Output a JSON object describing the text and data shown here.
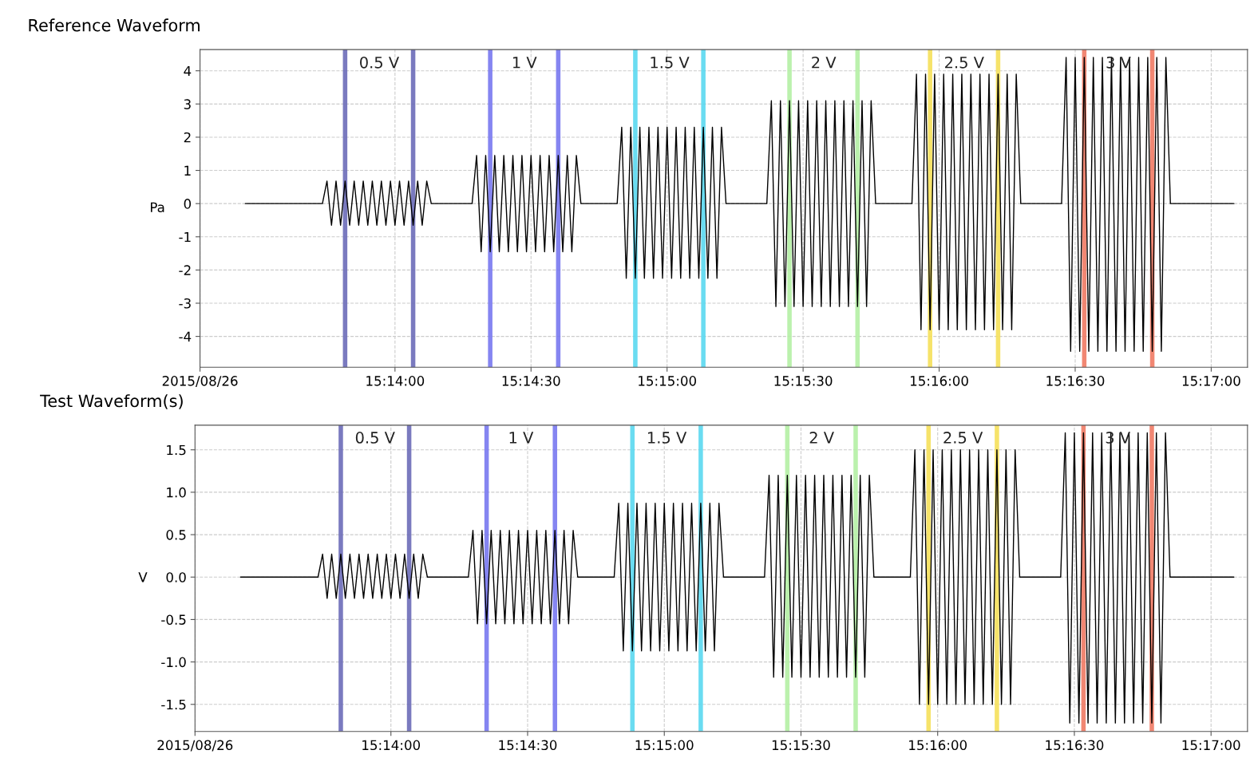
{
  "chart_data": [
    {
      "type": "line",
      "title": "Reference Waveform",
      "ylabel": "Pa",
      "grid": true,
      "xlim": [
        "2015-08-26T15:13:17",
        "2015-08-26T15:17:08"
      ],
      "xticks": [
        {
          "value": "2015-08-26T15:13:17",
          "label": "2015/08/26"
        },
        {
          "value": "2015-08-26T15:14:00",
          "label": "15:14:00"
        },
        {
          "value": "2015-08-26T15:14:30",
          "label": "15:14:30"
        },
        {
          "value": "2015-08-26T15:15:00",
          "label": "15:15:00"
        },
        {
          "value": "2015-08-26T15:15:30",
          "label": "15:15:30"
        },
        {
          "value": "2015-08-26T15:16:00",
          "label": "15:16:00"
        },
        {
          "value": "2015-08-26T15:16:30",
          "label": "15:16:30"
        },
        {
          "value": "2015-08-26T15:17:00",
          "label": "15:17:00"
        }
      ],
      "ylim": [
        -4.93,
        4.64
      ],
      "yticks": [
        -4,
        -3,
        -2,
        -1,
        0,
        1,
        2,
        3,
        4
      ],
      "ref_lines": [
        {
          "axis": "x",
          "value": "2015-08-26T15:13:49",
          "color": "#6b6bb8"
        },
        {
          "axis": "x",
          "value": "2015-08-26T15:14:04",
          "color": "#6b6bb8"
        },
        {
          "axis": "x",
          "value": "2015-08-26T15:14:21",
          "color": "#7878f0"
        },
        {
          "axis": "x",
          "value": "2015-08-26T15:14:36",
          "color": "#7878f0"
        },
        {
          "axis": "x",
          "value": "2015-08-26T15:14:53",
          "color": "#5ad8f0"
        },
        {
          "axis": "x",
          "value": "2015-08-26T15:15:08",
          "color": "#5ad8f0"
        },
        {
          "axis": "x",
          "value": "2015-08-26T15:15:27",
          "color": "#b4f0a4"
        },
        {
          "axis": "x",
          "value": "2015-08-26T15:15:42",
          "color": "#b4f0a4"
        },
        {
          "axis": "x",
          "value": "2015-08-26T15:15:58",
          "color": "#f5e05a"
        },
        {
          "axis": "x",
          "value": "2015-08-26T15:16:13",
          "color": "#f5e05a"
        },
        {
          "axis": "x",
          "value": "2015-08-26T15:16:32",
          "color": "#f07a64"
        },
        {
          "axis": "x",
          "value": "2015-08-26T15:16:47",
          "color": "#f07a64"
        }
      ],
      "annotations": [
        "0.5 V",
        "1 V",
        "1.5 V",
        "2 V",
        "2.5 V",
        "3 V"
      ],
      "series": [
        {
          "color": "#000000",
          "line_style": "solid",
          "x": [
            "2015-08-26T15:13:27",
            "2015-08-26T15:13:44",
            "2015-08-26T15:13:45",
            "2015-08-26T15:13:46",
            "2015-08-26T15:13:47",
            "2015-08-26T15:13:48",
            "2015-08-26T15:13:49",
            "2015-08-26T15:13:50",
            "2015-08-26T15:13:51",
            "2015-08-26T15:13:52",
            "2015-08-26T15:13:53",
            "2015-08-26T15:13:54",
            "2015-08-26T15:13:55",
            "2015-08-26T15:13:56",
            "2015-08-26T15:13:57",
            "2015-08-26T15:13:58",
            "2015-08-26T15:13:59",
            "2015-08-26T15:14:00",
            "2015-08-26T15:14:01",
            "2015-08-26T15:14:02",
            "2015-08-26T15:14:03",
            "2015-08-26T15:14:04",
            "2015-08-26T15:14:05",
            "2015-08-26T15:14:06",
            "2015-08-26T15:14:07",
            "2015-08-26T15:14:08",
            "2015-08-26T15:14:17",
            "2015-08-26T15:14:18",
            "2015-08-26T15:14:19",
            "2015-08-26T15:14:20",
            "2015-08-26T15:14:21",
            "2015-08-26T15:14:22",
            "2015-08-26T15:14:23",
            "2015-08-26T15:14:24",
            "2015-08-26T15:14:25",
            "2015-08-26T15:14:26",
            "2015-08-26T15:14:27",
            "2015-08-26T15:14:28",
            "2015-08-26T15:14:29",
            "2015-08-26T15:14:30",
            "2015-08-26T15:14:31",
            "2015-08-26T15:14:32",
            "2015-08-26T15:14:33",
            "2015-08-26T15:14:34",
            "2015-08-26T15:14:35",
            "2015-08-26T15:14:36",
            "2015-08-26T15:14:37",
            "2015-08-26T15:14:38",
            "2015-08-26T15:14:39",
            "2015-08-26T15:14:40",
            "2015-08-26T15:14:41",
            "2015-08-26T15:14:49",
            "2015-08-26T15:14:50",
            "2015-08-26T15:14:51",
            "2015-08-26T15:14:52",
            "2015-08-26T15:14:53",
            "2015-08-26T15:14:54",
            "2015-08-26T15:14:55",
            "2015-08-26T15:14:56",
            "2015-08-26T15:14:57",
            "2015-08-26T15:14:58",
            "2015-08-26T15:14:59",
            "2015-08-26T15:15:00",
            "2015-08-26T15:15:01",
            "2015-08-26T15:15:02",
            "2015-08-26T15:15:03",
            "2015-08-26T15:15:04",
            "2015-08-26T15:15:05",
            "2015-08-26T15:15:06",
            "2015-08-26T15:15:07",
            "2015-08-26T15:15:08",
            "2015-08-26T15:15:09",
            "2015-08-26T15:15:10",
            "2015-08-26T15:15:11",
            "2015-08-26T15:15:12",
            "2015-08-26T15:15:13",
            "2015-08-26T15:15:22",
            "2015-08-26T15:15:23",
            "2015-08-26T15:15:24",
            "2015-08-26T15:15:25",
            "2015-08-26T15:15:26",
            "2015-08-26T15:15:27",
            "2015-08-26T15:15:28",
            "2015-08-26T15:15:29",
            "2015-08-26T15:15:30",
            "2015-08-26T15:15:31",
            "2015-08-26T15:15:32",
            "2015-08-26T15:15:33",
            "2015-08-26T15:15:34",
            "2015-08-26T15:15:35",
            "2015-08-26T15:15:36",
            "2015-08-26T15:15:37",
            "2015-08-26T15:15:38",
            "2015-08-26T15:15:39",
            "2015-08-26T15:15:40",
            "2015-08-26T15:15:41",
            "2015-08-26T15:15:42",
            "2015-08-26T15:15:43",
            "2015-08-26T15:15:44",
            "2015-08-26T15:15:45",
            "2015-08-26T15:15:46",
            "2015-08-26T15:15:54",
            "2015-08-26T15:15:55",
            "2015-08-26T15:15:56",
            "2015-08-26T15:15:57",
            "2015-08-26T15:15:58",
            "2015-08-26T15:15:59",
            "2015-08-26T15:16:00",
            "2015-08-26T15:16:01",
            "2015-08-26T15:16:02",
            "2015-08-26T15:16:03",
            "2015-08-26T15:16:04",
            "2015-08-26T15:16:05",
            "2015-08-26T15:16:06",
            "2015-08-26T15:16:07",
            "2015-08-26T15:16:08",
            "2015-08-26T15:16:09",
            "2015-08-26T15:16:10",
            "2015-08-26T15:16:11",
            "2015-08-26T15:16:12",
            "2015-08-26T15:16:13",
            "2015-08-26T15:16:14",
            "2015-08-26T15:16:15",
            "2015-08-26T15:16:16",
            "2015-08-26T15:16:17",
            "2015-08-26T15:16:18",
            "2015-08-26T15:16:27",
            "2015-08-26T15:16:28",
            "2015-08-26T15:16:29",
            "2015-08-26T15:16:30",
            "2015-08-26T15:16:31",
            "2015-08-26T15:16:32",
            "2015-08-26T15:16:33",
            "2015-08-26T15:16:34",
            "2015-08-26T15:16:35",
            "2015-08-26T15:16:36",
            "2015-08-26T15:16:37",
            "2015-08-26T15:16:38",
            "2015-08-26T15:16:39",
            "2015-08-26T15:16:40",
            "2015-08-26T15:16:41",
            "2015-08-26T15:16:42",
            "2015-08-26T15:16:43",
            "2015-08-26T15:16:44",
            "2015-08-26T15:16:45",
            "2015-08-26T15:16:46",
            "2015-08-26T15:16:47",
            "2015-08-26T15:16:48",
            "2015-08-26T15:16:49",
            "2015-08-26T15:16:50",
            "2015-08-26T15:16:51",
            "2015-08-26T15:17:05"
          ],
          "values": [
            0,
            0,
            0.68,
            -0.65,
            0.68,
            -0.65,
            0.68,
            -0.65,
            0.68,
            -0.65,
            0.68,
            -0.65,
            0.68,
            -0.65,
            0.68,
            -0.65,
            0.68,
            -0.65,
            0.68,
            -0.65,
            0.68,
            -0.65,
            0.68,
            -0.65,
            0.68,
            0,
            0,
            1.45,
            -1.45,
            1.45,
            -1.45,
            1.45,
            -1.45,
            1.45,
            -1.45,
            1.45,
            -1.45,
            1.45,
            -1.45,
            1.45,
            -1.45,
            1.45,
            -1.45,
            1.45,
            -1.45,
            1.45,
            -1.45,
            1.45,
            -1.45,
            1.45,
            0,
            0,
            2.3,
            -2.25,
            2.3,
            -2.25,
            2.3,
            -2.25,
            2.3,
            -2.25,
            2.3,
            -2.25,
            2.3,
            -2.25,
            2.3,
            -2.25,
            2.3,
            -2.25,
            2.3,
            -2.25,
            2.3,
            -2.25,
            2.3,
            -2.25,
            2.3,
            0,
            0,
            3.1,
            -3.1,
            3.1,
            -3.1,
            3.1,
            -3.1,
            3.1,
            -3.1,
            3.1,
            -3.1,
            3.1,
            -3.1,
            3.1,
            -3.1,
            3.1,
            -3.1,
            3.1,
            -3.1,
            3.1,
            -3.1,
            3.1,
            -3.1,
            3.1,
            0,
            0,
            3.9,
            -3.8,
            3.9,
            -3.8,
            3.9,
            -3.8,
            3.9,
            -3.8,
            3.9,
            -3.8,
            3.9,
            -3.8,
            3.9,
            -3.8,
            3.9,
            -3.8,
            3.9,
            -3.8,
            3.9,
            -3.8,
            3.9,
            -3.8,
            3.9,
            0,
            0,
            4.4,
            -4.45,
            4.4,
            -4.45,
            4.4,
            -4.45,
            4.4,
            -4.45,
            4.4,
            -4.45,
            4.4,
            -4.45,
            4.4,
            -4.45,
            4.4,
            -4.45,
            4.4,
            -4.45,
            4.4,
            -4.45,
            4.4,
            -4.45,
            4.4,
            0,
            0
          ]
        }
      ]
    },
    {
      "type": "line",
      "title": "Test Waveform(s)",
      "ylabel": "V",
      "grid": true,
      "xlim": [
        "2015-08-26T15:13:17",
        "2015-08-26T15:17:08"
      ],
      "xticks": [
        {
          "value": "2015-08-26T15:13:17",
          "label": "2015/08/26"
        },
        {
          "value": "2015-08-26T15:14:00",
          "label": "15:14:00"
        },
        {
          "value": "2015-08-26T15:14:30",
          "label": "15:14:30"
        },
        {
          "value": "2015-08-26T15:15:00",
          "label": "15:15:00"
        },
        {
          "value": "2015-08-26T15:15:30",
          "label": "15:15:30"
        },
        {
          "value": "2015-08-26T15:16:00",
          "label": "15:16:00"
        },
        {
          "value": "2015-08-26T15:16:30",
          "label": "15:16:30"
        },
        {
          "value": "2015-08-26T15:17:00",
          "label": "15:17:00"
        }
      ],
      "ylim": [
        -1.82,
        1.79
      ],
      "yticks": [
        {
          "value": -1.5,
          "label": "-1.5"
        },
        {
          "value": -1,
          "label": "-1.0"
        },
        {
          "value": -0.5,
          "label": "-0.5"
        },
        {
          "value": 0,
          "label": "0.0"
        },
        {
          "value": 0.5,
          "label": "0.5"
        },
        {
          "value": 1,
          "label": "1.0"
        },
        {
          "value": 1.5,
          "label": "1.5"
        }
      ],
      "ref_lines": [
        {
          "axis": "x",
          "value": "2015-08-26T15:13:49",
          "color": "#6b6bb8"
        },
        {
          "axis": "x",
          "value": "2015-08-26T15:14:04",
          "color": "#6b6bb8"
        },
        {
          "axis": "x",
          "value": "2015-08-26T15:14:21",
          "color": "#7878f0"
        },
        {
          "axis": "x",
          "value": "2015-08-26T15:14:36",
          "color": "#7878f0"
        },
        {
          "axis": "x",
          "value": "2015-08-26T15:14:53",
          "color": "#5ad8f0"
        },
        {
          "axis": "x",
          "value": "2015-08-26T15:15:08",
          "color": "#5ad8f0"
        },
        {
          "axis": "x",
          "value": "2015-08-26T15:15:27",
          "color": "#b4f0a4"
        },
        {
          "axis": "x",
          "value": "2015-08-26T15:15:42",
          "color": "#b4f0a4"
        },
        {
          "axis": "x",
          "value": "2015-08-26T15:15:58",
          "color": "#f5e05a"
        },
        {
          "axis": "x",
          "value": "2015-08-26T15:16:13",
          "color": "#f5e05a"
        },
        {
          "axis": "x",
          "value": "2015-08-26T15:16:32",
          "color": "#f07a64"
        },
        {
          "axis": "x",
          "value": "2015-08-26T15:16:47",
          "color": "#f07a64"
        }
      ],
      "annotations": [
        "0.5 V",
        "1 V",
        "1.5 V",
        "2 V",
        "2.5 V",
        "3 V"
      ],
      "series": [
        {
          "color": "#000000",
          "line_style": "solid",
          "x": [
            "2015-08-26T15:13:27",
            "2015-08-26T15:13:44",
            "2015-08-26T15:13:45",
            "2015-08-26T15:13:46",
            "2015-08-26T15:13:47",
            "2015-08-26T15:13:48",
            "2015-08-26T15:13:49",
            "2015-08-26T15:13:50",
            "2015-08-26T15:13:51",
            "2015-08-26T15:13:52",
            "2015-08-26T15:13:53",
            "2015-08-26T15:13:54",
            "2015-08-26T15:13:55",
            "2015-08-26T15:13:56",
            "2015-08-26T15:13:57",
            "2015-08-26T15:13:58",
            "2015-08-26T15:13:59",
            "2015-08-26T15:14:00",
            "2015-08-26T15:14:01",
            "2015-08-26T15:14:02",
            "2015-08-26T15:14:03",
            "2015-08-26T15:14:04",
            "2015-08-26T15:14:05",
            "2015-08-26T15:14:06",
            "2015-08-26T15:14:07",
            "2015-08-26T15:14:08",
            "2015-08-26T15:14:17",
            "2015-08-26T15:14:18",
            "2015-08-26T15:14:19",
            "2015-08-26T15:14:20",
            "2015-08-26T15:14:21",
            "2015-08-26T15:14:22",
            "2015-08-26T15:14:23",
            "2015-08-26T15:14:24",
            "2015-08-26T15:14:25",
            "2015-08-26T15:14:26",
            "2015-08-26T15:14:27",
            "2015-08-26T15:14:28",
            "2015-08-26T15:14:29",
            "2015-08-26T15:14:30",
            "2015-08-26T15:14:31",
            "2015-08-26T15:14:32",
            "2015-08-26T15:14:33",
            "2015-08-26T15:14:34",
            "2015-08-26T15:14:35",
            "2015-08-26T15:14:36",
            "2015-08-26T15:14:37",
            "2015-08-26T15:14:38",
            "2015-08-26T15:14:39",
            "2015-08-26T15:14:40",
            "2015-08-26T15:14:41",
            "2015-08-26T15:14:49",
            "2015-08-26T15:14:50",
            "2015-08-26T15:14:51",
            "2015-08-26T15:14:52",
            "2015-08-26T15:14:53",
            "2015-08-26T15:14:54",
            "2015-08-26T15:14:55",
            "2015-08-26T15:14:56",
            "2015-08-26T15:14:57",
            "2015-08-26T15:14:58",
            "2015-08-26T15:14:59",
            "2015-08-26T15:15:00",
            "2015-08-26T15:15:01",
            "2015-08-26T15:15:02",
            "2015-08-26T15:15:03",
            "2015-08-26T15:15:04",
            "2015-08-26T15:15:05",
            "2015-08-26T15:15:06",
            "2015-08-26T15:15:07",
            "2015-08-26T15:15:08",
            "2015-08-26T15:15:09",
            "2015-08-26T15:15:10",
            "2015-08-26T15:15:11",
            "2015-08-26T15:15:12",
            "2015-08-26T15:15:13",
            "2015-08-26T15:15:22",
            "2015-08-26T15:15:23",
            "2015-08-26T15:15:24",
            "2015-08-26T15:15:25",
            "2015-08-26T15:15:26",
            "2015-08-26T15:15:27",
            "2015-08-26T15:15:28",
            "2015-08-26T15:15:29",
            "2015-08-26T15:15:30",
            "2015-08-26T15:15:31",
            "2015-08-26T15:15:32",
            "2015-08-26T15:15:33",
            "2015-08-26T15:15:34",
            "2015-08-26T15:15:35",
            "2015-08-26T15:15:36",
            "2015-08-26T15:15:37",
            "2015-08-26T15:15:38",
            "2015-08-26T15:15:39",
            "2015-08-26T15:15:40",
            "2015-08-26T15:15:41",
            "2015-08-26T15:15:42",
            "2015-08-26T15:15:43",
            "2015-08-26T15:15:44",
            "2015-08-26T15:15:45",
            "2015-08-26T15:15:46",
            "2015-08-26T15:15:54",
            "2015-08-26T15:15:55",
            "2015-08-26T15:15:56",
            "2015-08-26T15:15:57",
            "2015-08-26T15:15:58",
            "2015-08-26T15:15:59",
            "2015-08-26T15:16:00",
            "2015-08-26T15:16:01",
            "2015-08-26T15:16:02",
            "2015-08-26T15:16:03",
            "2015-08-26T15:16:04",
            "2015-08-26T15:16:05",
            "2015-08-26T15:16:06",
            "2015-08-26T15:16:07",
            "2015-08-26T15:16:08",
            "2015-08-26T15:16:09",
            "2015-08-26T15:16:10",
            "2015-08-26T15:16:11",
            "2015-08-26T15:16:12",
            "2015-08-26T15:16:13",
            "2015-08-26T15:16:14",
            "2015-08-26T15:16:15",
            "2015-08-26T15:16:16",
            "2015-08-26T15:16:17",
            "2015-08-26T15:16:18",
            "2015-08-26T15:16:27",
            "2015-08-26T15:16:28",
            "2015-08-26T15:16:29",
            "2015-08-26T15:16:30",
            "2015-08-26T15:16:31",
            "2015-08-26T15:16:32",
            "2015-08-26T15:16:33",
            "2015-08-26T15:16:34",
            "2015-08-26T15:16:35",
            "2015-08-26T15:16:36",
            "2015-08-26T15:16:37",
            "2015-08-26T15:16:38",
            "2015-08-26T15:16:39",
            "2015-08-26T15:16:40",
            "2015-08-26T15:16:41",
            "2015-08-26T15:16:42",
            "2015-08-26T15:16:43",
            "2015-08-26T15:16:44",
            "2015-08-26T15:16:45",
            "2015-08-26T15:16:46",
            "2015-08-26T15:16:47",
            "2015-08-26T15:16:48",
            "2015-08-26T15:16:49",
            "2015-08-26T15:16:50",
            "2015-08-26T15:16:51",
            "2015-08-26T15:17:05"
          ],
          "values": [
            0,
            0,
            0.27,
            -0.25,
            0.27,
            -0.25,
            0.27,
            -0.25,
            0.27,
            -0.25,
            0.27,
            -0.25,
            0.27,
            -0.25,
            0.27,
            -0.25,
            0.27,
            -0.25,
            0.27,
            -0.25,
            0.27,
            -0.25,
            0.27,
            -0.25,
            0.27,
            0,
            0,
            0.55,
            -0.55,
            0.55,
            -0.55,
            0.55,
            -0.55,
            0.55,
            -0.55,
            0.55,
            -0.55,
            0.55,
            -0.55,
            0.55,
            -0.55,
            0.55,
            -0.55,
            0.55,
            -0.55,
            0.55,
            -0.55,
            0.55,
            -0.55,
            0.55,
            0,
            0,
            0.87,
            -0.87,
            0.87,
            -0.87,
            0.87,
            -0.87,
            0.87,
            -0.87,
            0.87,
            -0.87,
            0.87,
            -0.87,
            0.87,
            -0.87,
            0.87,
            -0.87,
            0.87,
            -0.87,
            0.87,
            -0.87,
            0.87,
            -0.87,
            0.87,
            0,
            0,
            1.2,
            -1.18,
            1.2,
            -1.18,
            1.2,
            -1.18,
            1.2,
            -1.18,
            1.2,
            -1.18,
            1.2,
            -1.18,
            1.2,
            -1.18,
            1.2,
            -1.18,
            1.2,
            -1.18,
            1.2,
            -1.18,
            1.2,
            -1.18,
            1.2,
            0,
            0,
            1.5,
            -1.5,
            1.5,
            -1.5,
            1.5,
            -1.5,
            1.5,
            -1.5,
            1.5,
            -1.5,
            1.5,
            -1.5,
            1.5,
            -1.5,
            1.5,
            -1.5,
            1.5,
            -1.5,
            1.5,
            -1.5,
            1.5,
            -1.5,
            1.5,
            0,
            0,
            1.7,
            -1.72,
            1.7,
            -1.72,
            1.7,
            -1.72,
            1.7,
            -1.72,
            1.7,
            -1.72,
            1.7,
            -1.72,
            1.7,
            -1.72,
            1.7,
            -1.72,
            1.7,
            -1.72,
            1.7,
            -1.72,
            1.7,
            -1.72,
            1.7,
            0,
            0
          ]
        }
      ]
    }
  ]
}
